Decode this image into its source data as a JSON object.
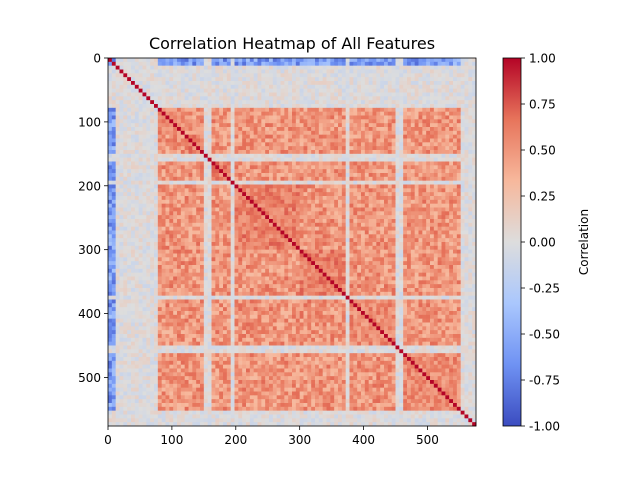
{
  "chart_data": {
    "type": "heatmap",
    "title": "Correlation Heatmap of All Features",
    "xlabel": "",
    "ylabel": "",
    "n_features": 576,
    "xlim": [
      0,
      576
    ],
    "ylim": [
      0,
      576
    ],
    "y_inverted": true,
    "x_ticks": [
      0,
      100,
      200,
      300,
      400,
      500
    ],
    "y_ticks": [
      0,
      100,
      200,
      300,
      400,
      500
    ],
    "colormap": "coolwarm",
    "colormap_stops": [
      "#3b4cc0",
      "#6f92f3",
      "#aac7fd",
      "#dddddd",
      "#f7b89c",
      "#e7745b",
      "#b40426"
    ],
    "colorbar": {
      "label": "Correlation",
      "range": [
        -1.0,
        1.0
      ],
      "ticks": [
        "1.00",
        "0.75",
        "0.50",
        "0.25",
        "0.00",
        "-0.25",
        "-0.50",
        "-0.75",
        "-1.00"
      ],
      "tick_values": [
        1.0,
        0.75,
        0.5,
        0.25,
        0.0,
        -0.25,
        -0.5,
        -0.75,
        -1.0
      ]
    },
    "diagonal_value": 1.0,
    "blocks": [
      {
        "rows": [
          0,
          8
        ],
        "cols": [
          0,
          8
        ],
        "value": 0.9
      },
      {
        "rows": [
          8,
          80
        ],
        "cols": [
          8,
          80
        ],
        "value": 0.0
      },
      {
        "rows": [
          80,
          120
        ],
        "cols": [
          80,
          120
        ],
        "value": 0.55
      },
      {
        "rows": [
          120,
          160
        ],
        "cols": [
          120,
          160
        ],
        "value": 0.6
      },
      {
        "rows": [
          160,
          200
        ],
        "cols": [
          160,
          200
        ],
        "value": 0.6
      },
      {
        "rows": [
          200,
          300
        ],
        "cols": [
          200,
          300
        ],
        "value": 0.6
      },
      {
        "rows": [
          300,
          372
        ],
        "cols": [
          300,
          372
        ],
        "value": 0.6
      },
      {
        "rows": [
          380,
          450
        ],
        "cols": [
          380,
          450
        ],
        "value": 0.55
      },
      {
        "rows": [
          460,
          560
        ],
        "cols": [
          460,
          560
        ],
        "value": 0.55
      }
    ],
    "uncorrelated_bands": [
      [
        10,
        80
      ],
      [
        148,
        160
      ],
      [
        192,
        200
      ],
      [
        298,
        302
      ],
      [
        372,
        380
      ],
      [
        450,
        460
      ],
      [
        555,
        576
      ]
    ],
    "negative_column_bands": [
      [
        0,
        10
      ],
      [
        25,
        35
      ]
    ]
  }
}
